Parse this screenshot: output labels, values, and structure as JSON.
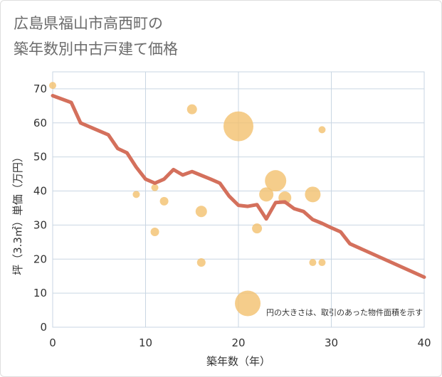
{
  "title_line1": "広島県福山市高西町の",
  "title_line2": "築年数別中古戸建て価格",
  "colors": {
    "line": "#d4705c",
    "bubble": "#f3c06e",
    "grid": "#c9d6e3",
    "plot_bg": "#ffffff"
  },
  "chart_data": {
    "type": "scatter",
    "xlabel": "築年数（年）",
    "ylabel": "坪（3.3㎡）単価（万円）",
    "xlim": [
      0,
      40
    ],
    "ylim": [
      0,
      75
    ],
    "x_ticks": [
      "0",
      "10",
      "20",
      "30",
      "40"
    ],
    "y_ticks": [
      "0",
      "10",
      "20",
      "30",
      "40",
      "50",
      "60",
      "70"
    ],
    "note": "円の大きさは、取引のあった物件面積を示す",
    "grid": true,
    "series": [
      {
        "type": "line",
        "points": [
          [
            0,
            68
          ],
          [
            2,
            66
          ],
          [
            3,
            60
          ],
          [
            6,
            56.5
          ],
          [
            7,
            52.5
          ],
          [
            8,
            51.2
          ],
          [
            9,
            47
          ],
          [
            10,
            43.5
          ],
          [
            11,
            42.3
          ],
          [
            12,
            43.5
          ],
          [
            13,
            46.3
          ],
          [
            14,
            44.7
          ],
          [
            15,
            45.7
          ],
          [
            16,
            44.6
          ],
          [
            17,
            43.5
          ],
          [
            18,
            42.3
          ],
          [
            19,
            38.5
          ],
          [
            20,
            35.8
          ],
          [
            21,
            35.5
          ],
          [
            22,
            36
          ],
          [
            23,
            31.8
          ],
          [
            24,
            36.6
          ],
          [
            25,
            36.8
          ],
          [
            26,
            34.8
          ],
          [
            27,
            34
          ],
          [
            28,
            31.6
          ],
          [
            29,
            30.5
          ],
          [
            30,
            29.2
          ],
          [
            31,
            28
          ],
          [
            32,
            24.5
          ],
          [
            40,
            14.7
          ]
        ]
      },
      {
        "type": "bubble",
        "points": [
          {
            "x": 0,
            "y": 71,
            "size": 5
          },
          {
            "x": 9,
            "y": 39,
            "size": 5
          },
          {
            "x": 11,
            "y": 41,
            "size": 5
          },
          {
            "x": 11,
            "y": 28,
            "size": 6
          },
          {
            "x": 12,
            "y": 37,
            "size": 6
          },
          {
            "x": 15,
            "y": 64,
            "size": 7
          },
          {
            "x": 16,
            "y": 34,
            "size": 8
          },
          {
            "x": 16,
            "y": 19,
            "size": 6
          },
          {
            "x": 20,
            "y": 59,
            "size": 21
          },
          {
            "x": 21,
            "y": 7,
            "size": 18
          },
          {
            "x": 22,
            "y": 29,
            "size": 7
          },
          {
            "x": 23,
            "y": 39,
            "size": 10
          },
          {
            "x": 24,
            "y": 43,
            "size": 15
          },
          {
            "x": 25,
            "y": 38,
            "size": 9
          },
          {
            "x": 28,
            "y": 39,
            "size": 11
          },
          {
            "x": 28,
            "y": 19,
            "size": 5
          },
          {
            "x": 29,
            "y": 58,
            "size": 5
          },
          {
            "x": 29,
            "y": 19,
            "size": 5
          }
        ]
      }
    ]
  }
}
